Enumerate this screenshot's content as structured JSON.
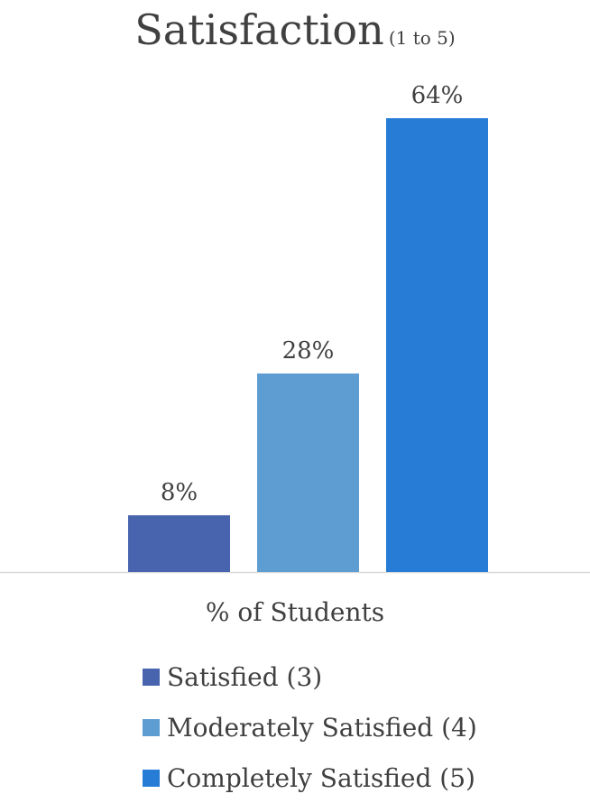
{
  "chart_data": {
    "type": "bar",
    "title": "Satisfaction",
    "subtitle": "(1 to 5)",
    "xlabel": "% of Students",
    "ylabel": "",
    "ylim": [
      0,
      64
    ],
    "grid": false,
    "legend_position": "bottom",
    "categories": [
      "% of Students"
    ],
    "series": [
      {
        "name": "Satisfied (3)",
        "values": [
          8
        ],
        "label": "8%",
        "color": "#4864AE"
      },
      {
        "name": "Moderately Satisfied (4)",
        "values": [
          28
        ],
        "label": "28%",
        "color": "#5E9DD2"
      },
      {
        "name": "Completely Satisfied (5)",
        "values": [
          64
        ],
        "label": "64%",
        "color": "#277DD6"
      }
    ]
  }
}
